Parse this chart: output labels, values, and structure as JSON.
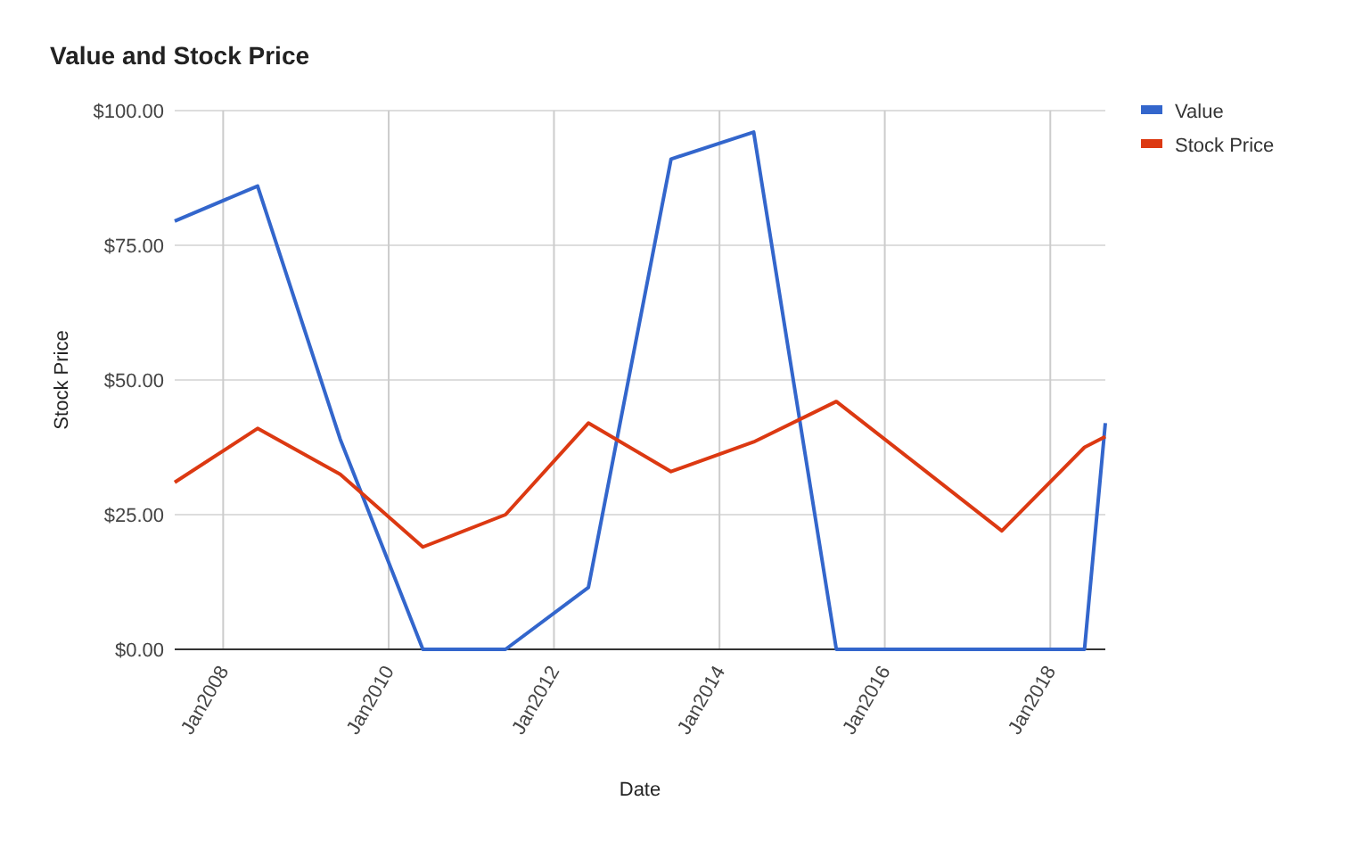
{
  "chart_data": {
    "type": "line",
    "title": "Value and Stock Price",
    "xlabel": "Date",
    "ylabel": "Stock Price",
    "x": [
      "2007-06",
      "2008-06",
      "2009-06",
      "2010-06",
      "2011-06",
      "2012-06",
      "2013-06",
      "2014-06",
      "2015-06",
      "2016-06",
      "2017-06",
      "2018-06",
      "2018-09"
    ],
    "series": [
      {
        "name": "Value",
        "color": "#3366cc",
        "values": [
          79.5,
          86,
          39,
          0,
          0,
          11.5,
          91,
          96,
          0,
          0,
          0,
          0,
          42
        ]
      },
      {
        "name": "Stock Price",
        "color": "#dc3912",
        "values": [
          31,
          41,
          32.5,
          19,
          25,
          42,
          33,
          38.5,
          46,
          34,
          22,
          37.5,
          39.5
        ]
      }
    ],
    "xlim": [
      "2007-06",
      "2018-09"
    ],
    "xticks": [
      {
        "value": "2008-01",
        "label": "Jan2008"
      },
      {
        "value": "2010-01",
        "label": "Jan2010"
      },
      {
        "value": "2012-01",
        "label": "Jan2012"
      },
      {
        "value": "2014-01",
        "label": "Jan2014"
      },
      {
        "value": "2016-01",
        "label": "Jan2016"
      },
      {
        "value": "2018-01",
        "label": "Jan2018"
      }
    ],
    "ylim": [
      0,
      100
    ],
    "yticks": [
      {
        "value": 0,
        "label": "$0.00"
      },
      {
        "value": 25,
        "label": "$25.00"
      },
      {
        "value": 50,
        "label": "$50.00"
      },
      {
        "value": 75,
        "label": "$75.00"
      },
      {
        "value": 100,
        "label": "$100.00"
      }
    ],
    "grid": true,
    "legend": "top right",
    "line_style": "solid"
  }
}
